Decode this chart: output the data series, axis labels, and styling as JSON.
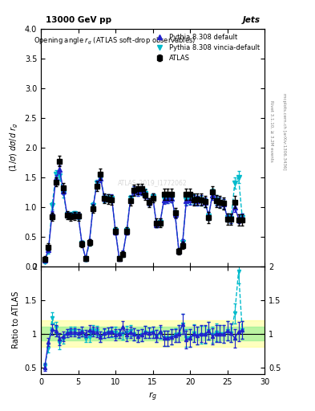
{
  "title_top": "13000 GeV pp",
  "title_right": "Jets",
  "watermark": "ATLAS_2019_I1772062",
  "right_label": "Rivet 3.1.10, ≥ 3.2M events",
  "right_label2": "mcplots.cern.ch [arXiv:1306.3436]",
  "xlim": [
    0,
    30
  ],
  "ylim_main": [
    0,
    4
  ],
  "ylim_ratio": [
    0.4,
    2.0
  ],
  "atlas_x": [
    0.5,
    1.0,
    1.5,
    2.0,
    2.5,
    3.0,
    3.5,
    4.0,
    4.5,
    5.0,
    5.5,
    6.0,
    6.5,
    7.0,
    7.5,
    8.0,
    8.5,
    9.0,
    9.5,
    10.0,
    10.5,
    11.0,
    11.5,
    12.0,
    12.5,
    13.0,
    13.5,
    14.0,
    14.5,
    15.0,
    15.5,
    16.0,
    16.5,
    17.0,
    17.5,
    18.0,
    18.5,
    19.0,
    19.5,
    20.0,
    20.5,
    21.0,
    21.5,
    22.0,
    22.5,
    23.0,
    23.5,
    24.0,
    24.5,
    25.0,
    25.5,
    26.0,
    26.5,
    27.0
  ],
  "atlas_y": [
    0.12,
    0.32,
    0.83,
    1.42,
    1.77,
    1.32,
    0.86,
    0.83,
    0.85,
    0.84,
    0.37,
    0.13,
    0.4,
    0.97,
    1.35,
    1.55,
    1.14,
    1.13,
    1.12,
    0.59,
    0.13,
    0.2,
    0.59,
    1.1,
    1.28,
    1.3,
    1.3,
    1.2,
    1.07,
    1.15,
    0.73,
    0.73,
    1.21,
    1.21,
    1.21,
    0.9,
    0.25,
    0.35,
    1.21,
    1.21,
    1.12,
    1.13,
    1.12,
    1.09,
    0.82,
    1.25,
    1.1,
    1.08,
    1.06,
    0.79,
    0.79,
    1.08,
    0.78,
    0.78
  ],
  "atlas_yerr": [
    0.05,
    0.06,
    0.07,
    0.08,
    0.09,
    0.08,
    0.07,
    0.07,
    0.07,
    0.07,
    0.05,
    0.04,
    0.05,
    0.07,
    0.08,
    0.09,
    0.08,
    0.08,
    0.08,
    0.06,
    0.04,
    0.05,
    0.06,
    0.08,
    0.09,
    0.09,
    0.09,
    0.09,
    0.08,
    0.08,
    0.07,
    0.07,
    0.09,
    0.09,
    0.09,
    0.08,
    0.05,
    0.06,
    0.1,
    0.1,
    0.1,
    0.1,
    0.1,
    0.1,
    0.09,
    0.1,
    0.1,
    0.1,
    0.1,
    0.09,
    0.09,
    0.1,
    0.09,
    0.09
  ],
  "py_default_x": [
    0.5,
    1.0,
    1.5,
    2.0,
    2.5,
    3.0,
    3.5,
    4.0,
    4.5,
    5.0,
    5.5,
    6.0,
    6.5,
    7.0,
    7.5,
    8.0,
    8.5,
    9.0,
    9.5,
    10.0,
    10.5,
    11.0,
    11.5,
    12.0,
    12.5,
    13.0,
    13.5,
    14.0,
    14.5,
    15.0,
    15.5,
    16.0,
    16.5,
    17.0,
    17.5,
    18.0,
    18.5,
    19.0,
    19.5,
    20.0,
    20.5,
    21.0,
    21.5,
    22.0,
    22.5,
    23.0,
    23.5,
    24.0,
    24.5,
    25.0,
    25.5,
    26.0,
    26.5,
    27.0
  ],
  "py_default_y": [
    0.1,
    0.28,
    0.88,
    1.48,
    1.63,
    1.27,
    0.87,
    0.85,
    0.87,
    0.85,
    0.38,
    0.13,
    0.42,
    1.0,
    1.38,
    1.48,
    1.15,
    1.15,
    1.15,
    0.58,
    0.13,
    0.22,
    0.58,
    1.12,
    1.27,
    1.25,
    1.27,
    1.22,
    1.08,
    1.17,
    0.7,
    0.75,
    1.12,
    1.13,
    1.15,
    0.87,
    0.25,
    0.4,
    1.1,
    1.12,
    1.12,
    1.1,
    1.12,
    1.08,
    0.85,
    1.2,
    1.1,
    1.08,
    1.05,
    0.82,
    0.8,
    1.0,
    0.8,
    0.82
  ],
  "py_default_yerr": [
    0.03,
    0.04,
    0.05,
    0.06,
    0.07,
    0.06,
    0.05,
    0.05,
    0.05,
    0.05,
    0.04,
    0.03,
    0.04,
    0.05,
    0.06,
    0.07,
    0.06,
    0.06,
    0.06,
    0.05,
    0.03,
    0.04,
    0.05,
    0.06,
    0.07,
    0.07,
    0.07,
    0.07,
    0.06,
    0.06,
    0.05,
    0.05,
    0.07,
    0.07,
    0.07,
    0.06,
    0.04,
    0.05,
    0.08,
    0.08,
    0.08,
    0.08,
    0.08,
    0.08,
    0.07,
    0.08,
    0.08,
    0.08,
    0.08,
    0.07,
    0.07,
    0.08,
    0.07,
    0.07
  ],
  "py_vincia_x": [
    0.5,
    1.0,
    1.5,
    2.0,
    2.5,
    3.0,
    3.5,
    4.0,
    4.5,
    5.0,
    5.5,
    6.0,
    6.5,
    7.0,
    7.5,
    8.0,
    8.5,
    9.0,
    9.5,
    10.0,
    10.5,
    11.0,
    11.5,
    12.0,
    12.5,
    13.0,
    13.5,
    14.0,
    14.5,
    15.0,
    15.5,
    16.0,
    16.5,
    17.0,
    17.5,
    18.0,
    18.5,
    19.0,
    19.5,
    20.0,
    20.5,
    21.0,
    21.5,
    22.0,
    22.5,
    23.0,
    23.5,
    24.0,
    24.5,
    25.0,
    25.5,
    26.0,
    26.5,
    27.0
  ],
  "py_vincia_y": [
    0.08,
    0.25,
    1.02,
    1.55,
    1.52,
    1.22,
    0.87,
    0.86,
    0.88,
    0.84,
    0.38,
    0.12,
    0.38,
    1.02,
    1.4,
    1.48,
    1.14,
    1.15,
    1.14,
    0.6,
    0.13,
    0.2,
    0.6,
    1.14,
    1.27,
    1.25,
    1.27,
    1.23,
    1.08,
    1.17,
    0.7,
    0.74,
    1.13,
    1.13,
    1.15,
    0.88,
    0.25,
    0.4,
    1.12,
    1.13,
    1.13,
    1.1,
    1.1,
    1.07,
    0.85,
    1.22,
    1.12,
    1.08,
    1.05,
    0.82,
    0.8,
    1.4,
    1.5,
    0.82
  ],
  "py_vincia_yerr": [
    0.03,
    0.04,
    0.06,
    0.07,
    0.07,
    0.06,
    0.05,
    0.05,
    0.05,
    0.05,
    0.04,
    0.03,
    0.04,
    0.05,
    0.06,
    0.07,
    0.06,
    0.06,
    0.06,
    0.05,
    0.03,
    0.04,
    0.05,
    0.06,
    0.07,
    0.07,
    0.07,
    0.07,
    0.06,
    0.06,
    0.05,
    0.05,
    0.07,
    0.07,
    0.07,
    0.06,
    0.04,
    0.05,
    0.08,
    0.08,
    0.08,
    0.08,
    0.08,
    0.08,
    0.07,
    0.08,
    0.08,
    0.08,
    0.08,
    0.07,
    0.07,
    0.1,
    0.1,
    0.07
  ],
  "color_atlas": "#000000",
  "color_default": "#2222cc",
  "color_vincia": "#00bbcc",
  "color_band_green": "#90ee90",
  "color_band_yellow": "#ffff80",
  "ratio_default": [
    0.5,
    0.87,
    1.06,
    1.04,
    0.92,
    0.96,
    1.01,
    1.02,
    1.02,
    1.01,
    1.03,
    1.0,
    1.05,
    1.03,
    1.02,
    0.95,
    1.01,
    1.02,
    1.03,
    0.98,
    1.0,
    1.1,
    0.98,
    1.02,
    0.99,
    0.96,
    0.98,
    1.02,
    1.01,
    1.02,
    0.96,
    1.03,
    0.93,
    0.93,
    0.95,
    0.97,
    1.0,
    1.14,
    0.91,
    0.93,
    1.0,
    0.97,
    1.0,
    0.99,
    1.04,
    0.96,
    1.0,
    1.0,
    0.99,
    1.04,
    1.01,
    0.93,
    1.03,
    1.05
  ],
  "ratio_vincia": [
    0.52,
    0.78,
    1.23,
    1.09,
    0.86,
    0.92,
    1.01,
    1.04,
    1.04,
    1.0,
    1.03,
    0.92,
    0.95,
    1.05,
    1.04,
    0.95,
    1.0,
    1.02,
    1.02,
    1.02,
    1.0,
    1.0,
    1.02,
    1.04,
    0.99,
    0.96,
    0.98,
    1.02,
    1.01,
    1.02,
    0.96,
    1.01,
    0.93,
    0.93,
    0.95,
    0.98,
    1.0,
    1.14,
    0.93,
    0.93,
    1.01,
    0.97,
    0.98,
    0.98,
    1.04,
    0.98,
    1.02,
    1.0,
    0.99,
    1.04,
    1.01,
    1.3,
    1.92,
    1.05
  ],
  "ratio_default_err": [
    0.05,
    0.06,
    0.08,
    0.08,
    0.09,
    0.07,
    0.06,
    0.06,
    0.06,
    0.06,
    0.07,
    0.05,
    0.07,
    0.07,
    0.07,
    0.08,
    0.07,
    0.07,
    0.07,
    0.08,
    0.06,
    0.09,
    0.09,
    0.08,
    0.09,
    0.09,
    0.09,
    0.09,
    0.08,
    0.08,
    0.09,
    0.09,
    0.11,
    0.11,
    0.11,
    0.1,
    0.12,
    0.15,
    0.13,
    0.13,
    0.13,
    0.13,
    0.13,
    0.13,
    0.13,
    0.12,
    0.13,
    0.13,
    0.13,
    0.14,
    0.14,
    0.14,
    0.14,
    0.13
  ],
  "ratio_vincia_err": [
    0.05,
    0.06,
    0.08,
    0.08,
    0.09,
    0.07,
    0.06,
    0.06,
    0.06,
    0.06,
    0.07,
    0.05,
    0.07,
    0.07,
    0.07,
    0.08,
    0.07,
    0.07,
    0.07,
    0.08,
    0.06,
    0.09,
    0.09,
    0.08,
    0.09,
    0.09,
    0.09,
    0.09,
    0.08,
    0.08,
    0.09,
    0.09,
    0.11,
    0.11,
    0.11,
    0.1,
    0.12,
    0.15,
    0.13,
    0.13,
    0.13,
    0.13,
    0.13,
    0.13,
    0.13,
    0.12,
    0.13,
    0.13,
    0.13,
    0.14,
    0.14,
    0.15,
    0.18,
    0.13
  ]
}
